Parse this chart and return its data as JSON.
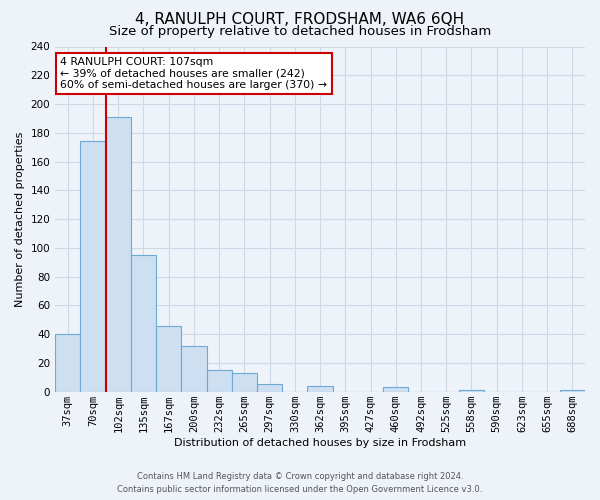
{
  "title": "4, RANULPH COURT, FRODSHAM, WA6 6QH",
  "subtitle": "Size of property relative to detached houses in Frodsham",
  "xlabel": "Distribution of detached houses by size in Frodsham",
  "ylabel": "Number of detached properties",
  "bar_labels": [
    "37sqm",
    "70sqm",
    "102sqm",
    "135sqm",
    "167sqm",
    "200sqm",
    "232sqm",
    "265sqm",
    "297sqm",
    "330sqm",
    "362sqm",
    "395sqm",
    "427sqm",
    "460sqm",
    "492sqm",
    "525sqm",
    "558sqm",
    "590sqm",
    "623sqm",
    "655sqm",
    "688sqm"
  ],
  "bar_values": [
    40,
    174,
    191,
    95,
    46,
    32,
    15,
    13,
    5,
    0,
    4,
    0,
    0,
    3,
    0,
    0,
    1,
    0,
    0,
    0,
    1
  ],
  "bar_color": "#cddff0",
  "bar_edge_color": "#6aaad4",
  "vline_color": "#cc0000",
  "vline_index": 2,
  "ylim": [
    0,
    240
  ],
  "yticks": [
    0,
    20,
    40,
    60,
    80,
    100,
    120,
    140,
    160,
    180,
    200,
    220,
    240
  ],
  "annotation_title": "4 RANULPH COURT: 107sqm",
  "annotation_line1": "← 39% of detached houses are smaller (242)",
  "annotation_line2": "60% of semi-detached houses are larger (370) →",
  "footer_line1": "Contains HM Land Registry data © Crown copyright and database right 2024.",
  "footer_line2": "Contains public sector information licensed under the Open Government Licence v3.0.",
  "bg_color": "#eef3fa",
  "grid_color": "#d0d8e8",
  "title_fontsize": 11,
  "subtitle_fontsize": 9.5,
  "axis_label_fontsize": 8,
  "tick_fontsize": 7.5
}
